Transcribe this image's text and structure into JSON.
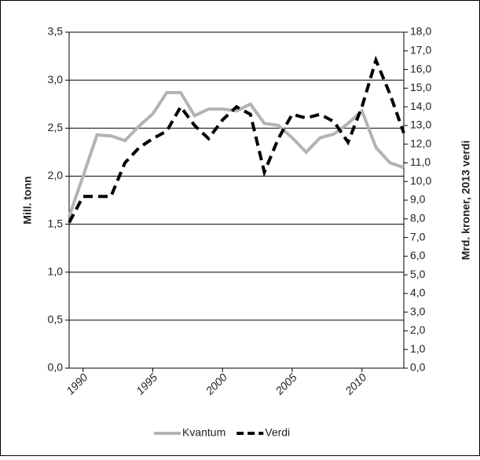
{
  "chart_data": {
    "type": "line",
    "x": [
      1989,
      1990,
      1991,
      1992,
      1993,
      1994,
      1995,
      1996,
      1997,
      1998,
      1999,
      2000,
      2001,
      2002,
      2003,
      2004,
      2005,
      2006,
      2007,
      2008,
      2009,
      2010,
      2011,
      2012,
      2013
    ],
    "xlim": [
      1989,
      2013
    ],
    "xticks": [
      1990,
      1995,
      2000,
      2005,
      2010
    ],
    "series": [
      {
        "name": "Kvantum",
        "color": "#b3b3b3",
        "values": [
          1.58,
          2.0,
          2.43,
          2.42,
          2.37,
          2.52,
          2.65,
          2.87,
          2.87,
          2.63,
          2.7,
          2.7,
          2.68,
          2.75,
          2.55,
          2.53,
          2.4,
          2.25,
          2.4,
          2.44,
          2.55,
          2.68,
          2.3,
          2.14,
          2.09
        ]
      },
      {
        "name": "Verdi",
        "color": "#000000",
        "axis": "y2",
        "values": [
          7.8,
          9.2,
          9.2,
          9.2,
          11.0,
          11.8,
          12.3,
          12.7,
          14.0,
          13.0,
          12.3,
          13.3,
          14.0,
          13.6,
          10.5,
          12.3,
          13.6,
          13.4,
          13.6,
          13.2,
          12.1,
          14.0,
          16.5,
          14.7,
          12.6
        ]
      }
    ],
    "ylabel": "Mill. tonn",
    "y2label": "Mrd. kroner, 2013 verdi",
    "ylim": [
      0,
      3.5
    ],
    "yticks": [
      {
        "value": 0,
        "label": "0,0"
      },
      {
        "value": 0.5,
        "label": "0,5"
      },
      {
        "value": 1,
        "label": "1,0"
      },
      {
        "value": 1.5,
        "label": "1,5"
      },
      {
        "value": 2,
        "label": "2,0"
      },
      {
        "value": 2.5,
        "label": "2,5"
      },
      {
        "value": 3,
        "label": "3,0"
      },
      {
        "value": 3.5,
        "label": "3,5"
      }
    ],
    "y2lim": [
      0,
      18
    ],
    "y2ticks": [
      {
        "value": 0,
        "label": "0,0"
      },
      {
        "value": 1,
        "label": "1,0"
      },
      {
        "value": 2,
        "label": "2,0"
      },
      {
        "value": 3,
        "label": "3,0"
      },
      {
        "value": 4,
        "label": "4,0"
      },
      {
        "value": 5,
        "label": "5,0"
      },
      {
        "value": 6,
        "label": "6,0"
      },
      {
        "value": 7,
        "label": "7,0"
      },
      {
        "value": 8,
        "label": "8,0"
      },
      {
        "value": 9,
        "label": "9,0"
      },
      {
        "value": 10,
        "label": "10,0"
      },
      {
        "value": 11,
        "label": "11,0"
      },
      {
        "value": 12,
        "label": "12,0"
      },
      {
        "value": 13,
        "label": "13,0"
      },
      {
        "value": 14,
        "label": "14,0"
      },
      {
        "value": 15,
        "label": "15,0"
      },
      {
        "value": 16,
        "label": "16,0"
      },
      {
        "value": 17,
        "label": "17,0"
      },
      {
        "value": 18,
        "label": "18,0"
      }
    ],
    "grid": true,
    "legend": "bottom"
  }
}
